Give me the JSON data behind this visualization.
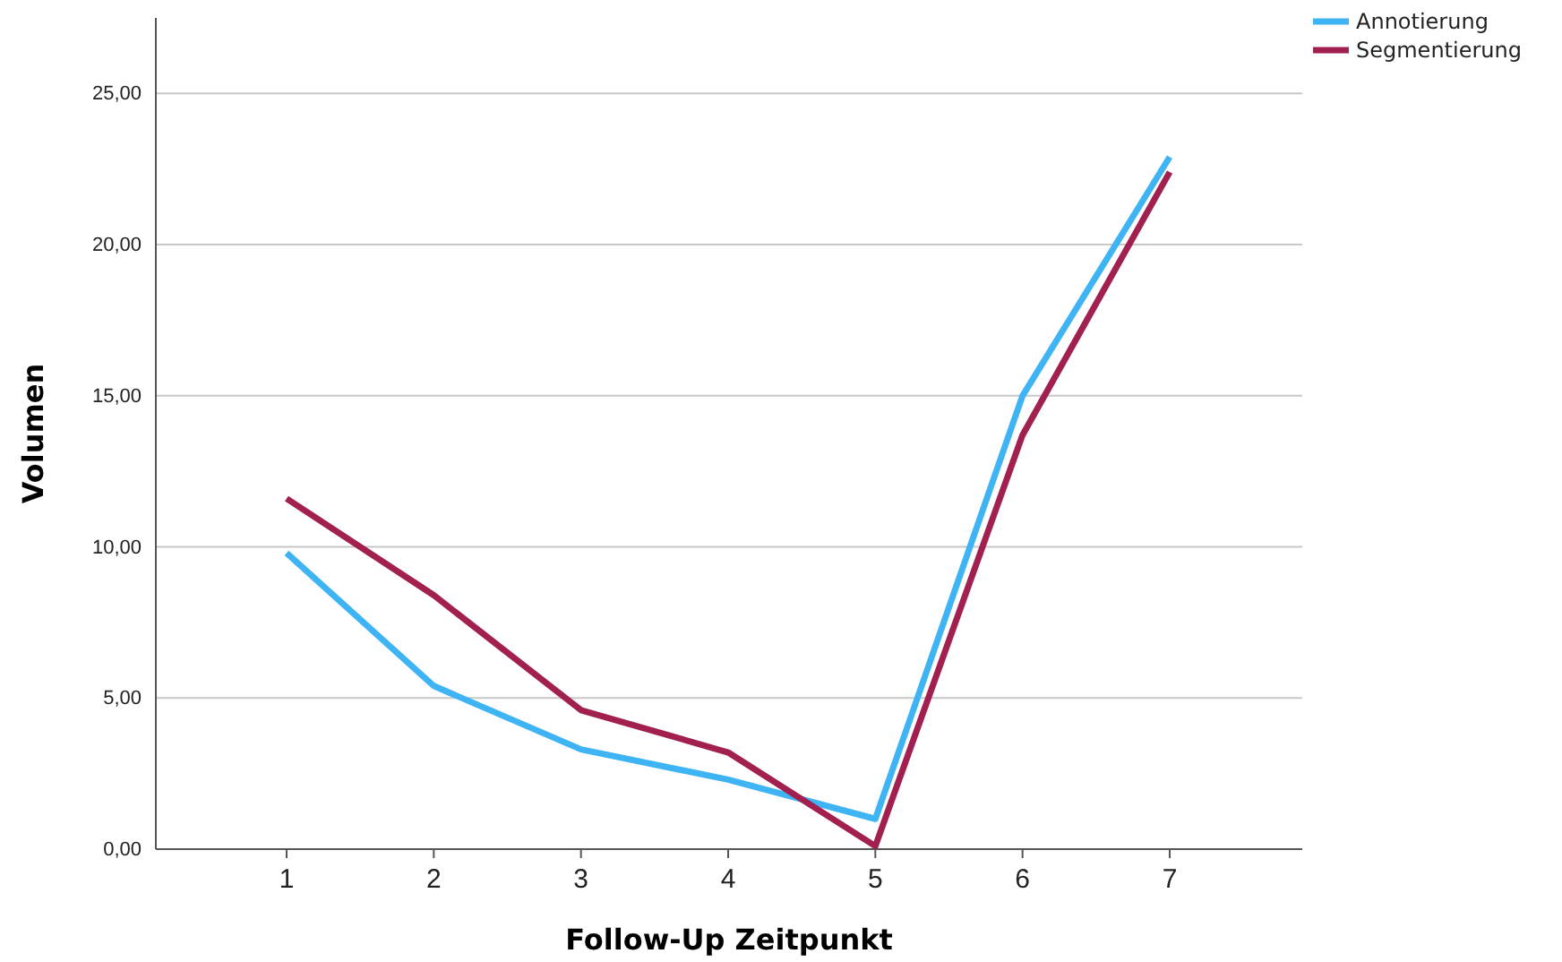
{
  "chart_data": {
    "type": "line",
    "xlabel": "Follow-Up Zeitpunkt",
    "ylabel": "Volumen",
    "categories": [
      "1",
      "2",
      "3",
      "4",
      "5",
      "6",
      "7"
    ],
    "series": [
      {
        "name": "Annotierung",
        "color": "#3eb4f5",
        "values": [
          9.8,
          5.4,
          3.3,
          2.3,
          1.0,
          15.0,
          22.9
        ]
      },
      {
        "name": "Segmentierung",
        "color": "#a1204f",
        "values": [
          11.6,
          8.4,
          4.6,
          3.2,
          0.1,
          13.7,
          22.4
        ]
      }
    ],
    "ylim": [
      0,
      27.5
    ],
    "yticks": [
      {
        "value": 0,
        "label": "0,00"
      },
      {
        "value": 5,
        "label": "5,00"
      },
      {
        "value": 10,
        "label": "10,00"
      },
      {
        "value": 15,
        "label": "15,00"
      },
      {
        "value": 20,
        "label": "20,00"
      },
      {
        "value": 25,
        "label": "25,00"
      }
    ],
    "grid": "y",
    "legend": "top right",
    "marker": "none",
    "line_style": "solid"
  }
}
